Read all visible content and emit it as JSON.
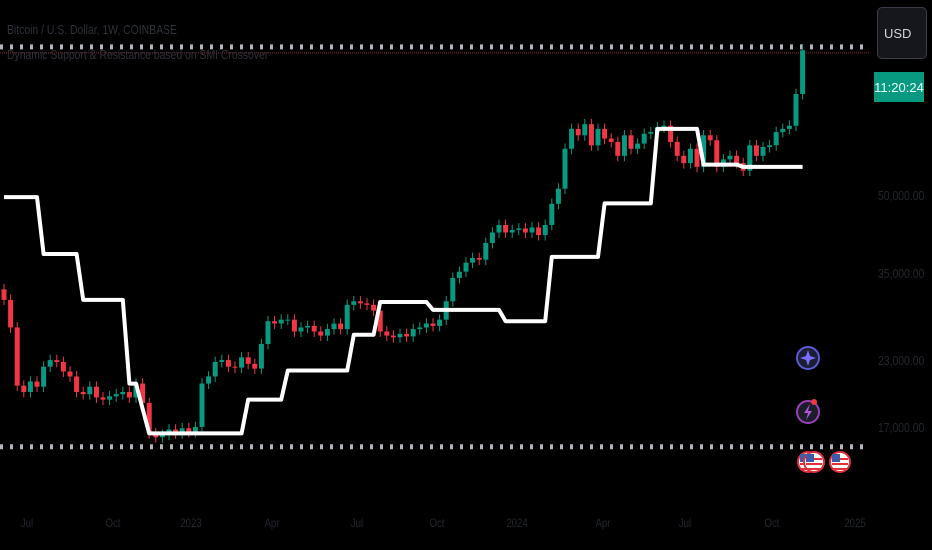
{
  "header": {
    "symbol_title": "Bitcoin / U.S. Dollar, 1W, COINBASE",
    "indicator_title": "Dynamic Support & Resistance based on SMI Crossover"
  },
  "price_scale": {
    "currency_button": "USD",
    "countdown": "11:20:24",
    "labels": [
      "50,000.00",
      "35,000.00",
      "23,000.00",
      "17,000.00"
    ]
  },
  "time_axis": {
    "labels": [
      "Jul",
      "Oct",
      "2023",
      "Apr",
      "Jul",
      "Oct",
      "2024",
      "Apr",
      "Jul",
      "Oct",
      "2025"
    ]
  },
  "colors": {
    "up": "#089981",
    "down": "#f23645",
    "support_line": "#ffffff",
    "background": "#000000",
    "countdown_bg": "#089981"
  },
  "icons": [
    "sparkle-icon",
    "lightning-icon",
    "us-flag-icon",
    "us-flag-icon"
  ],
  "chart_data": {
    "type": "candlestick",
    "scale": "log",
    "interval": "1W",
    "ylim": [
      15500,
      99600
    ],
    "closes": [
      30700,
      27000,
      20600,
      20000,
      21000,
      20500,
      22500,
      23200,
      23000,
      22000,
      21500,
      20000,
      19800,
      20500,
      19500,
      19300,
      19600,
      19800,
      20000,
      19500,
      20800,
      19000,
      16500,
      16200,
      16400,
      16800,
      16500,
      16900,
      16600,
      17000,
      20800,
      21500,
      23000,
      23200,
      22500,
      22400,
      23500,
      22800,
      22300,
      25000,
      27800,
      27500,
      28000,
      28000,
      26500,
      27000,
      27200,
      26500,
      26000,
      26800,
      27500,
      26800,
      30000,
      30500,
      30200,
      30000,
      29200,
      26500,
      26000,
      25800,
      26200,
      25900,
      26800,
      27000,
      27500,
      27200,
      28000,
      30500,
      34000,
      35000,
      36500,
      37300,
      37000,
      40000,
      42000,
      43500,
      42000,
      42500,
      42800,
      42000,
      43000,
      41500,
      43500,
      48000,
      51500,
      62000,
      68000,
      66000,
      69500,
      63000,
      68000,
      65000,
      64000,
      60000,
      66000,
      62000,
      63500,
      66500,
      67000,
      68500,
      69000,
      64000,
      60000,
      58000,
      62000,
      57000,
      66000,
      64500,
      57000,
      59000,
      60000,
      58000,
      56000,
      63000,
      60000,
      62500,
      63000,
      67000,
      68000,
      69000,
      80000,
      98000
    ],
    "support_resistance_steps": [
      [
        0,
        49500
      ],
      [
        6,
        38000
      ],
      [
        12,
        30700
      ],
      [
        19,
        20800
      ],
      [
        21,
        18500
      ],
      [
        22,
        16500
      ],
      [
        37,
        19300
      ],
      [
        43,
        22100
      ],
      [
        53,
        26100
      ],
      [
        57,
        30400
      ],
      [
        65,
        29300
      ],
      [
        76,
        27800
      ],
      [
        83,
        37500
      ],
      [
        91,
        48100
      ],
      [
        99,
        68000
      ],
      [
        106,
        57600
      ],
      [
        112,
        57000
      ]
    ],
    "horizontal_levels": [
      99600,
      15500
    ]
  }
}
